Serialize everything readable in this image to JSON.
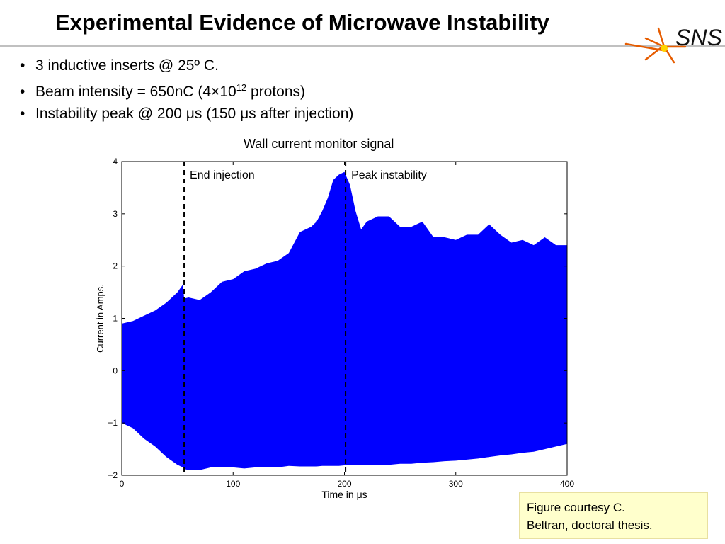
{
  "slide": {
    "title": "Experimental Evidence of Microwave Instability",
    "logo_text": "SNS",
    "bullets": [
      {
        "text": "3 inductive inserts @ 25º C."
      },
      {
        "text_before": "Beam intensity = 650nC (4×10",
        "sup": "12",
        "text_after": " protons)"
      },
      {
        "text": "Instability peak @ 200 μs (150 μs after injection)"
      }
    ],
    "credit_line1": "Figure courtesy C.",
    "credit_line2": "Beltran, doctoral thesis."
  },
  "colors": {
    "signal": "#0000ff",
    "accent_logo": "#e65c00",
    "credit_bg": "#ffffcc"
  },
  "chart_data": {
    "type": "area",
    "title": "Wall current monitor signal",
    "xlabel": "Time in μs",
    "ylabel": "Current in Amps.",
    "xlim": [
      0,
      400
    ],
    "ylim": [
      -2,
      4
    ],
    "xticks": [
      0,
      100,
      200,
      300,
      400
    ],
    "yticks": [
      -2,
      -1,
      0,
      1,
      2,
      3,
      4
    ],
    "grid": false,
    "series": [
      {
        "x": [
          0,
          10,
          20,
          30,
          40,
          50,
          55,
          56,
          60,
          70,
          80,
          90,
          100,
          110,
          120,
          130,
          140,
          150,
          160,
          170,
          175,
          180,
          185,
          190,
          195,
          200,
          205,
          210,
          215,
          220,
          230,
          240,
          250,
          260,
          270,
          280,
          290,
          300,
          310,
          320,
          330,
          340,
          350,
          360,
          370,
          380,
          390,
          400
        ],
        "upper": [
          0.9,
          0.95,
          1.05,
          1.15,
          1.3,
          1.5,
          1.65,
          1.38,
          1.4,
          1.35,
          1.5,
          1.7,
          1.75,
          1.9,
          1.95,
          2.05,
          2.1,
          2.25,
          2.65,
          2.75,
          2.85,
          3.05,
          3.3,
          3.65,
          3.75,
          3.8,
          3.55,
          3.05,
          2.7,
          2.85,
          2.95,
          2.95,
          2.75,
          2.75,
          2.85,
          2.55,
          2.55,
          2.5,
          2.6,
          2.6,
          2.8,
          2.6,
          2.45,
          2.5,
          2.4,
          2.55,
          2.4,
          2.4
        ],
        "lower": [
          -1.0,
          -1.1,
          -1.3,
          -1.45,
          -1.65,
          -1.8,
          -1.85,
          -1.88,
          -1.9,
          -1.9,
          -1.85,
          -1.85,
          -1.85,
          -1.87,
          -1.85,
          -1.85,
          -1.85,
          -1.82,
          -1.83,
          -1.83,
          -1.83,
          -1.82,
          -1.82,
          -1.82,
          -1.82,
          -1.81,
          -1.8,
          -1.8,
          -1.8,
          -1.8,
          -1.8,
          -1.8,
          -1.78,
          -1.78,
          -1.76,
          -1.75,
          -1.73,
          -1.72,
          -1.7,
          -1.68,
          -1.65,
          -1.62,
          -1.6,
          -1.57,
          -1.55,
          -1.5,
          -1.45,
          -1.4
        ]
      }
    ],
    "annotations": [
      {
        "x": 56,
        "label": "End injection",
        "style": "dashed-vline"
      },
      {
        "x": 201,
        "label": "Peak instability",
        "style": "dashed-vline"
      }
    ]
  }
}
